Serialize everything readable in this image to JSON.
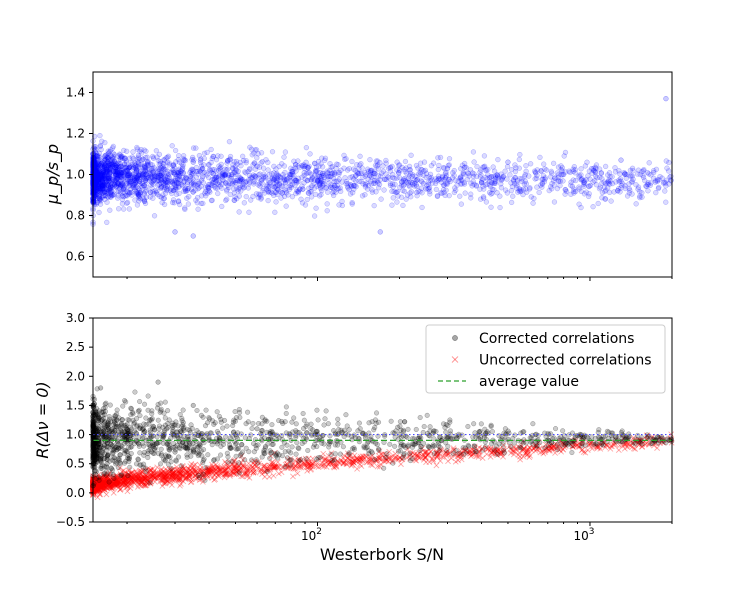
{
  "chart_data": [
    {
      "type": "scatter",
      "title": "",
      "xlabel": "",
      "ylabel": "μ_p/s_p",
      "xscale": "log",
      "xlim": [
        15,
        2000
      ],
      "ylim": [
        0.5,
        1.5
      ],
      "yticks": [
        "0.6",
        "0.8",
        "1.0",
        "1.2",
        "1.4"
      ],
      "grid": false,
      "series": [
        {
          "color": "#0000ff",
          "marker": "circle",
          "description_points": [
            [
              16,
              1.0
            ],
            [
              17,
              0.98
            ],
            [
              18,
              1.05
            ],
            [
              19,
              0.95
            ],
            [
              20,
              1.02
            ],
            [
              22,
              0.9
            ],
            [
              25,
              1.08
            ],
            [
              28,
              0.93
            ],
            [
              30,
              1.0
            ],
            [
              35,
              1.06
            ],
            [
              40,
              0.92
            ],
            [
              45,
              1.0
            ],
            [
              50,
              0.96
            ],
            [
              60,
              1.04
            ],
            [
              70,
              0.94
            ],
            [
              80,
              1.0
            ],
            [
              100,
              0.97
            ],
            [
              120,
              1.01
            ],
            [
              150,
              0.95
            ],
            [
              170,
              0.72
            ],
            [
              200,
              1.02
            ],
            [
              250,
              0.93
            ],
            [
              300,
              1.03
            ],
            [
              400,
              0.96
            ],
            [
              500,
              1.06
            ],
            [
              800,
              1.0
            ],
            [
              1300,
              1.07
            ],
            [
              1900,
              1.37
            ],
            [
              30,
              0.72
            ],
            [
              35,
              0.7
            ]
          ]
        }
      ]
    },
    {
      "type": "scatter",
      "title": "",
      "xlabel": "Westerbork S/N",
      "ylabel": "R(Δν = 0)",
      "xscale": "log",
      "xlim": [
        15,
        2000
      ],
      "ylim": [
        -0.5,
        3.0
      ],
      "yticks": [
        "−0.5",
        "0.0",
        "0.5",
        "1.0",
        "1.5",
        "2.0",
        "2.5",
        "3.0"
      ],
      "xticks": [
        {
          "value": 100,
          "base": "10",
          "exp": "2"
        },
        {
          "value": 1000,
          "base": "10",
          "exp": "3"
        }
      ],
      "grid": false,
      "legend_position": "top-right",
      "series": [
        {
          "name": "Corrected correlations",
          "color": "#000000",
          "marker": "circle",
          "points": [
            [
              16,
              1.8
            ],
            [
              17,
              1.2
            ],
            [
              18,
              0.6
            ],
            [
              20,
              1.0
            ],
            [
              22,
              1.4
            ],
            [
              25,
              0.8
            ],
            [
              26,
              1.9
            ],
            [
              28,
              1.1
            ],
            [
              30,
              0.7
            ],
            [
              35,
              1.5
            ],
            [
              40,
              0.9
            ],
            [
              50,
              1.0
            ],
            [
              60,
              1.1
            ],
            [
              80,
              0.9
            ],
            [
              100,
              1.0
            ],
            [
              150,
              0.95
            ],
            [
              200,
              1.0
            ],
            [
              300,
              0.95
            ],
            [
              500,
              0.92
            ],
            [
              800,
              0.9
            ],
            [
              1300,
              0.88
            ]
          ]
        },
        {
          "name": "Uncorrected correlations",
          "color": "#ff0000",
          "marker": "x",
          "points": [
            [
              16,
              0.15
            ],
            [
              18,
              0.2
            ],
            [
              20,
              0.18
            ],
            [
              25,
              0.22
            ],
            [
              30,
              0.25
            ],
            [
              40,
              0.3
            ],
            [
              50,
              0.38
            ],
            [
              70,
              0.45
            ],
            [
              100,
              0.55
            ],
            [
              150,
              0.62
            ],
            [
              200,
              0.68
            ],
            [
              300,
              0.75
            ],
            [
              500,
              0.82
            ],
            [
              800,
              0.85
            ],
            [
              1300,
              0.88
            ]
          ]
        },
        {
          "name": "average value",
          "color": "#2ca02c",
          "style": "dashed",
          "y": 0.9
        },
        {
          "color": "#4a4aff",
          "style": "dotted",
          "y": 1.0
        }
      ]
    }
  ]
}
